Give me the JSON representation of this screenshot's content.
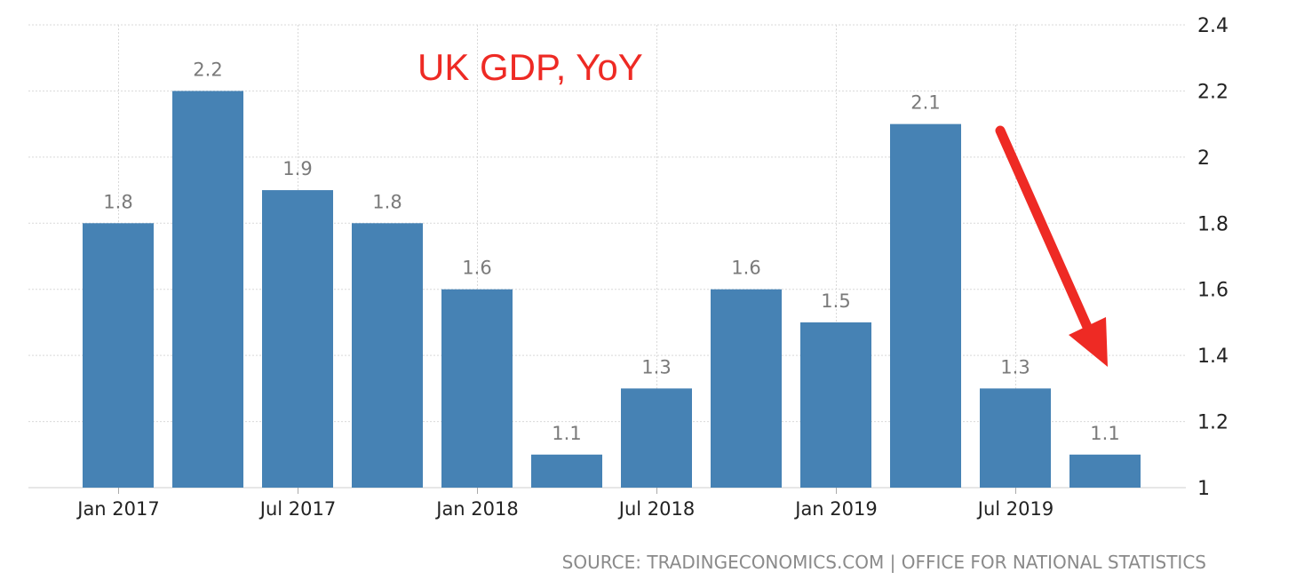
{
  "chart_data": {
    "type": "bar",
    "title": "UK GDP, YoY",
    "categories": [
      "2017Q1",
      "2017Q2",
      "2017Q3",
      "2017Q4",
      "2018Q1",
      "2018Q2",
      "2018Q3",
      "2018Q4",
      "2019Q1",
      "2019Q2",
      "2019Q3",
      "2019Q4"
    ],
    "values": [
      1.8,
      2.2,
      1.9,
      1.8,
      1.6,
      1.1,
      1.3,
      1.6,
      1.5,
      2.1,
      1.3,
      1.1
    ],
    "data_labels": [
      "1.8",
      "2.2",
      "1.9",
      "1.8",
      "1.6",
      "1.1",
      "1.3",
      "1.6",
      "1.5",
      "2.1",
      "1.3",
      "1.1"
    ],
    "x_tick_labels": [
      "Jan 2017",
      "Jul 2017",
      "Jan 2018",
      "Jul 2018",
      "Jan 2019",
      "Jul 2019"
    ],
    "y_tick_labels": [
      "1",
      "1.2",
      "1.4",
      "1.6",
      "1.8",
      "2",
      "2.2",
      "2.4"
    ],
    "ylim": [
      1,
      2.4
    ],
    "y_axis_side": "right",
    "grid": true,
    "bar_color": "#4682b4",
    "title_color": "#ee2a24",
    "annotation": {
      "type": "arrow",
      "direction": "down-right",
      "color": "#ee2a24"
    },
    "source": "SOURCE: TRADINGECONOMICS.COM | OFFICE FOR NATIONAL STATISTICS"
  }
}
